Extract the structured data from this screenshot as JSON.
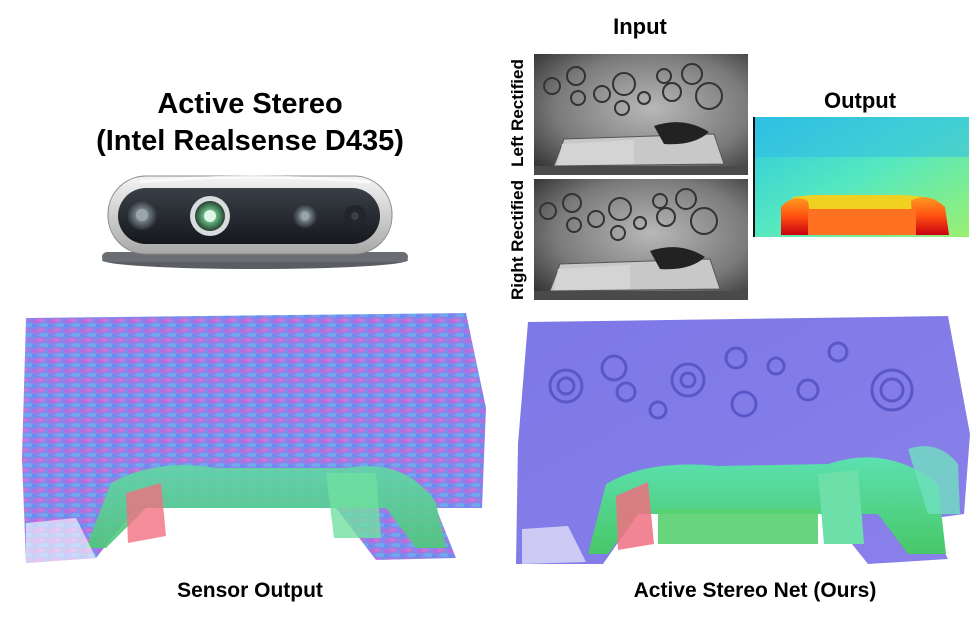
{
  "heading": {
    "line1": "Active Stereo",
    "line2": "(Intel Realsense D435)"
  },
  "input_panel": {
    "title": "Input",
    "left_label": "Left Rectified",
    "right_label": "Right Rectified"
  },
  "output_panel": {
    "title": "Output"
  },
  "captions": {
    "left": "Sensor Output",
    "right": "Active Stereo Net (Ours)"
  }
}
